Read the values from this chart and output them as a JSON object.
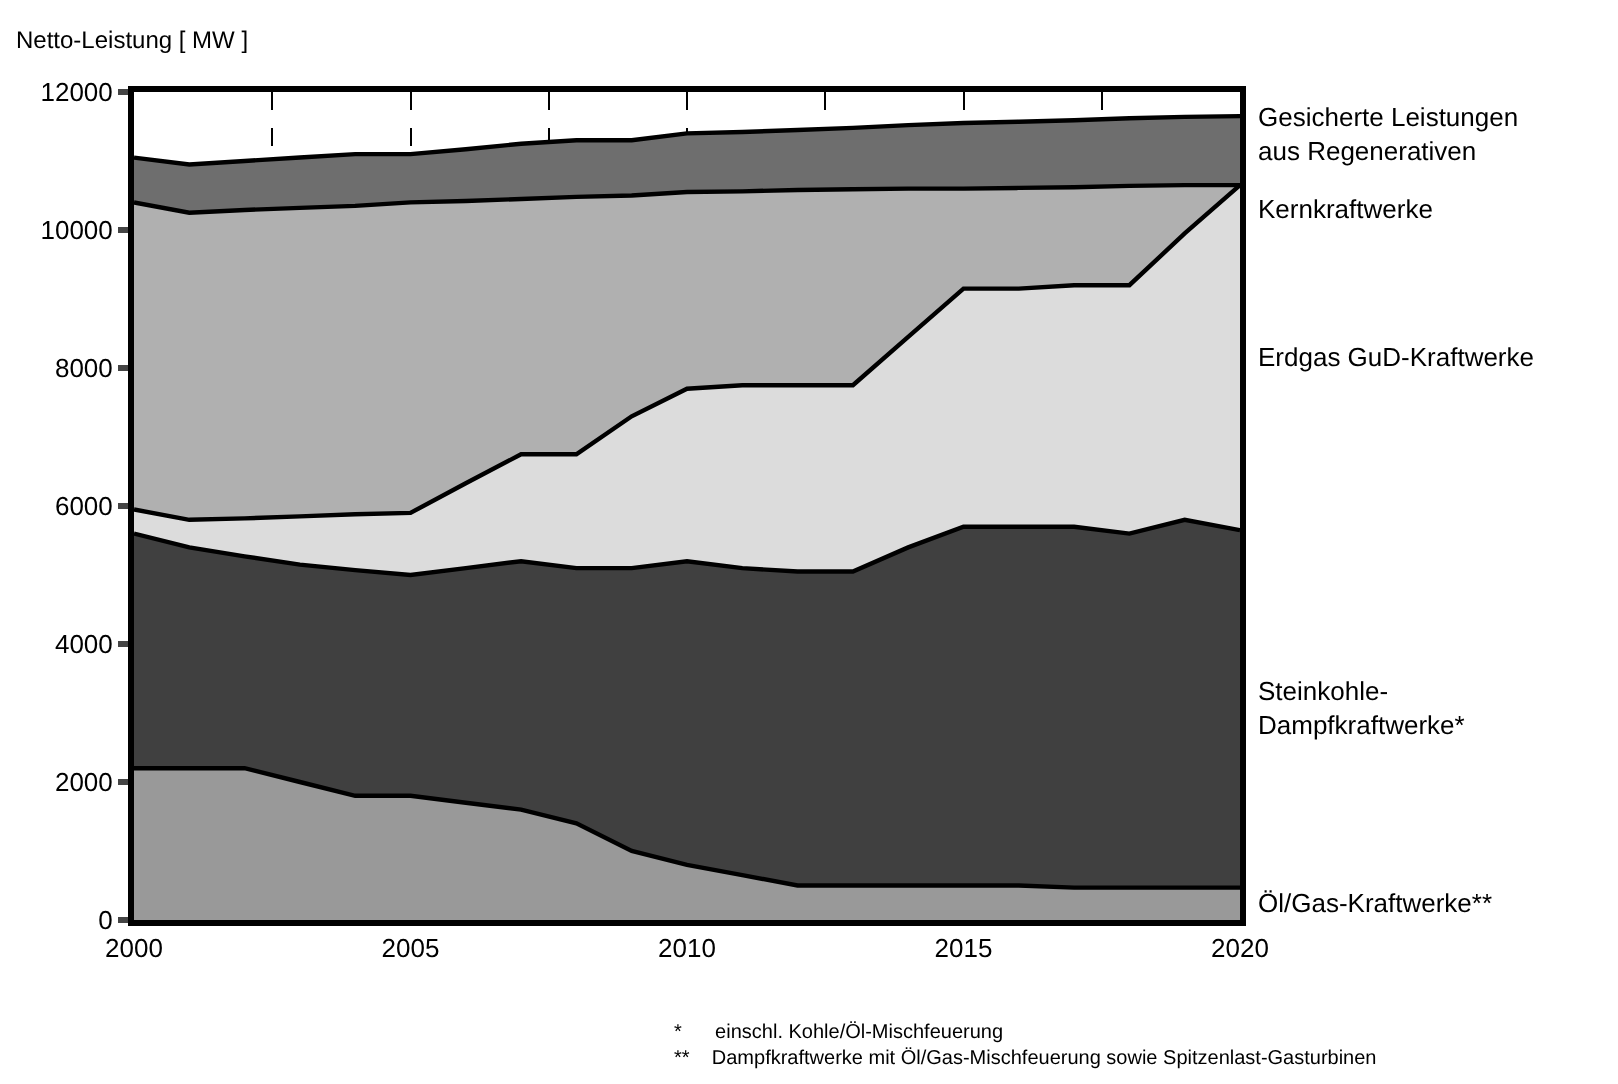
{
  "chart_data": {
    "type": "area",
    "ylabel": "Netto-Leistung [ MW ]",
    "x": [
      2000,
      2001,
      2002,
      2003,
      2004,
      2005,
      2006,
      2007,
      2008,
      2009,
      2010,
      2011,
      2012,
      2013,
      2014,
      2015,
      2016,
      2017,
      2018,
      2019,
      2020
    ],
    "series": [
      {
        "name": "Öl/Gas-Kraftwerke**",
        "color": "#999999",
        "values": [
          2200,
          2200,
          2200,
          2000,
          1800,
          1800,
          1700,
          1600,
          1400,
          1000,
          800,
          650,
          500,
          500,
          500,
          500,
          500,
          470,
          470,
          470,
          470
        ]
      },
      {
        "name": "Steinkohle-\nDampfkraftwerke*",
        "color": "#404040",
        "values": [
          5600,
          5400,
          5270,
          5150,
          5070,
          5000,
          5100,
          5200,
          5100,
          5100,
          5200,
          5100,
          5050,
          5050,
          5400,
          5700,
          5700,
          5700,
          5600,
          5800,
          5650
        ]
      },
      {
        "name": "Erdgas GuD-Kraftwerke",
        "color": "#dcdcdc",
        "values": [
          5950,
          5800,
          5820,
          5850,
          5880,
          5900,
          6330,
          6750,
          6750,
          7300,
          7700,
          7750,
          7750,
          7750,
          8450,
          9150,
          9150,
          9200,
          9200,
          9950,
          10650
        ]
      },
      {
        "name": "Kernkraftwerke",
        "color": "#b0b0b0",
        "values": [
          10400,
          10250,
          10290,
          10320,
          10350,
          10400,
          10420,
          10450,
          10480,
          10500,
          10550,
          10560,
          10580,
          10590,
          10600,
          10600,
          10610,
          10620,
          10640,
          10650,
          10650
        ]
      },
      {
        "name": "Gesicherte Leistungen\naus Regenerativen",
        "color": "#6e6e6e",
        "values": [
          11050,
          10950,
          11000,
          11050,
          11100,
          11100,
          11170,
          11250,
          11300,
          11300,
          11400,
          11420,
          11450,
          11480,
          11520,
          11550,
          11570,
          11590,
          11620,
          11640,
          11650
        ]
      }
    ],
    "xlim": [
      2000,
      2020
    ],
    "xticks": [
      2000,
      {
        "value": 2002.5,
        "label": null
      },
      2005,
      {
        "value": 2007.5,
        "label": null
      },
      2010,
      {
        "value": 2012.5,
        "label": null
      },
      2015,
      {
        "value": 2017.5,
        "label": null
      },
      2020
    ],
    "ylim": [
      0,
      12000
    ],
    "yticks": [
      0,
      2000,
      4000,
      6000,
      8000,
      10000,
      12000
    ],
    "grid": "x",
    "legend": false,
    "annotations": [
      "*      einschl. Kohle/Öl-Mischfeuerung",
      "**    Dampfkraftwerke mit Öl/Gas-Mischfeuerung sowie Spitzenlast-Gasturbinen"
    ]
  }
}
